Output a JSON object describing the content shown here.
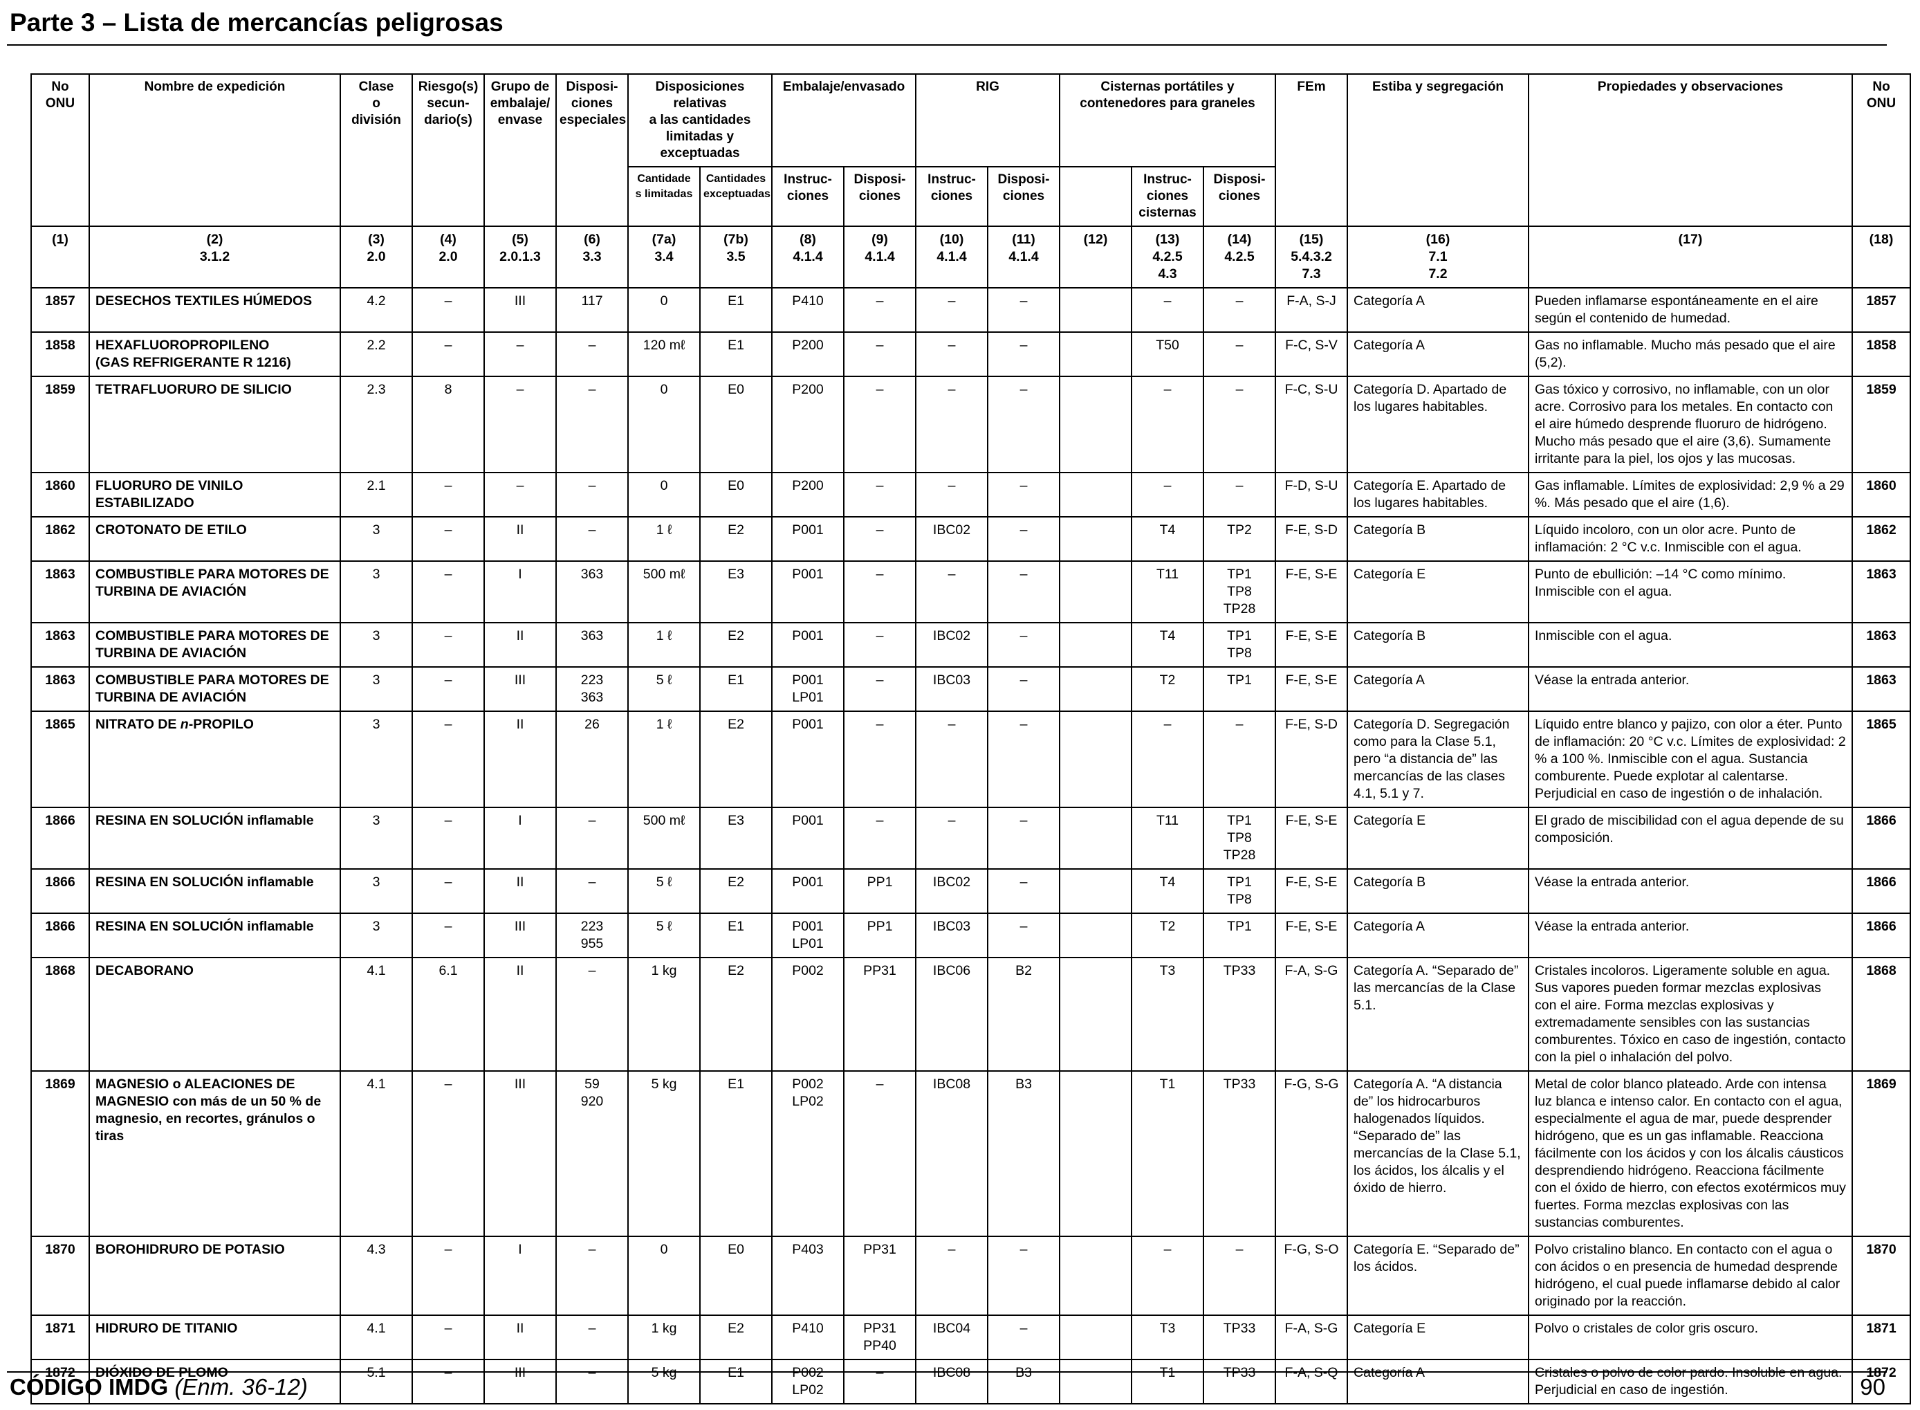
{
  "page_title": "Parte 3 – Lista de mercancías peligrosas",
  "header": {
    "un_no": "No\nONU",
    "name": "Nombre de expedición",
    "class": "Clase\no\ndivisión",
    "subsidiary": "Riesgo(s)\nsecun-\ndario(s)",
    "pg": "Grupo de\nembalaje/\nenvase",
    "sp": "Disposi-\nciones\nespeciales",
    "limited_excepted": "Disposiciones relativas\na las cantidades\nlimitadas y exceptuadas",
    "limited": "Cantidade\ns limitadas",
    "excepted": "Cantidades\nexceptuadas",
    "packing": "Embalaje/envasado",
    "packing_instr": "Instruc-\nciones",
    "packing_prov": "Disposi-\nciones",
    "ibc": "RIG",
    "ibc_instr": "Instruc-\nciones",
    "ibc_prov": "Disposi-\nciones",
    "tanks": "Cisternas portátiles y\ncontenedores para graneles",
    "tank_instr": "Instruc-\nciones\ncisternas",
    "tank_prov": "Disposi-\nciones",
    "ems": "FEm",
    "stowage": "Estiba y segregación",
    "properties": "Propiedades y observaciones",
    "un_no_end": "No\nONU"
  },
  "ref_row": [
    "(1)",
    "(2)\n3.1.2",
    "(3)\n2.0",
    "(4)\n2.0",
    "(5)\n2.0.1.3",
    "(6)\n3.3",
    "(7a)\n3.4",
    "(7b)\n3.5",
    "(8)\n4.1.4",
    "(9)\n4.1.4",
    "(10)\n4.1.4",
    "(11)\n4.1.4",
    "(12)",
    "(13)\n4.2.5\n4.3",
    "(14)\n4.2.5",
    "(15)\n5.4.3.2\n7.3",
    "(16)\n7.1\n7.2",
    "(17)",
    "(18)"
  ],
  "rows": [
    {
      "un": "1857",
      "name": "DESECHOS TEXTILES HÚMEDOS",
      "cls": "4.2",
      "sub": "–",
      "pg": "III",
      "sp": "117",
      "lq": "0",
      "eq": "E1",
      "pi": "P410",
      "pp": "–",
      "ibc": "–",
      "ibcp": "–",
      "c12": "",
      "tank": "–",
      "tp": "–",
      "ems": "F-A, S-J",
      "stow": "Categoría A",
      "prop": "Pueden inflamarse espontáneamente en el aire según el contenido de humedad.",
      "un2": "1857"
    },
    {
      "un": "1858",
      "name": "HEXAFLUOROPROPILENO\n(GAS REFRIGERANTE R 1216)",
      "cls": "2.2",
      "sub": "–",
      "pg": "–",
      "sp": "–",
      "lq": "120 mℓ",
      "eq": "E1",
      "pi": "P200",
      "pp": "–",
      "ibc": "–",
      "ibcp": "–",
      "c12": "",
      "tank": "T50",
      "tp": "–",
      "ems": "F-C, S-V",
      "stow": "Categoría A",
      "prop": "Gas no inflamable. Mucho más pesado que el aire (5,2).",
      "un2": "1858"
    },
    {
      "un": "1859",
      "name": "TETRAFLUORURO DE SILICIO",
      "cls": "2.3",
      "sub": "8",
      "pg": "–",
      "sp": "–",
      "lq": "0",
      "eq": "E0",
      "pi": "P200",
      "pp": "–",
      "ibc": "–",
      "ibcp": "–",
      "c12": "",
      "tank": "–",
      "tp": "–",
      "ems": "F-C, S-U",
      "stow": "Categoría D. Apartado de los lugares habitables.",
      "prop": "Gas tóxico y corrosivo, no inflamable, con un olor acre. Corrosivo para los metales. En contacto con el aire húmedo desprende fluoruro de hidrógeno. Mucho más pesado que el aire (3,6). Sumamente irritante para la piel, los ojos y las mucosas.",
      "un2": "1859"
    },
    {
      "un": "1860",
      "name": "FLUORURO DE VINILO ESTABILIZADO",
      "cls": "2.1",
      "sub": "–",
      "pg": "–",
      "sp": "–",
      "lq": "0",
      "eq": "E0",
      "pi": "P200",
      "pp": "–",
      "ibc": "–",
      "ibcp": "–",
      "c12": "",
      "tank": "–",
      "tp": "–",
      "ems": "F-D, S-U",
      "stow": "Categoría E. Apartado de los lugares habitables.",
      "prop": "Gas inflamable. Límites de explosividad: 2,9 % a 29 %. Más pesado que el aire (1,6).",
      "un2": "1860"
    },
    {
      "un": "1862",
      "name": "CROTONATO DE ETILO",
      "cls": "3",
      "sub": "–",
      "pg": "II",
      "sp": "–",
      "lq": "1 ℓ",
      "eq": "E2",
      "pi": "P001",
      "pp": "–",
      "ibc": "IBC02",
      "ibcp": "–",
      "c12": "",
      "tank": "T4",
      "tp": "TP2",
      "ems": "F-E, S-D",
      "stow": "Categoría B",
      "prop": "Líquido incoloro, con un olor acre. Punto de inflamación: 2 °C v.c. Inmiscible con el agua.",
      "un2": "1862"
    },
    {
      "un": "1863",
      "name": "COMBUSTIBLE PARA MOTORES DE TURBINA DE AVIACIÓN",
      "cls": "3",
      "sub": "–",
      "pg": "I",
      "sp": "363",
      "lq": "500 mℓ",
      "eq": "E3",
      "pi": "P001",
      "pp": "–",
      "ibc": "–",
      "ibcp": "–",
      "c12": "",
      "tank": "T11",
      "tp": "TP1\nTP8\nTP28",
      "ems": "F-E, S-E",
      "stow": "Categoría E",
      "prop": "Punto de ebullición: –14 °C como mínimo.\nInmiscible con el agua.",
      "un2": "1863"
    },
    {
      "un": "1863",
      "name": "COMBUSTIBLE PARA MOTORES DE TURBINA DE AVIACIÓN",
      "cls": "3",
      "sub": "–",
      "pg": "II",
      "sp": "363",
      "lq": "1 ℓ",
      "eq": "E2",
      "pi": "P001",
      "pp": "–",
      "ibc": "IBC02",
      "ibcp": "–",
      "c12": "",
      "tank": "T4",
      "tp": "TP1\nTP8",
      "ems": "F-E, S-E",
      "stow": "Categoría B",
      "prop": "Inmiscible con el agua.",
      "un2": "1863"
    },
    {
      "un": "1863",
      "name": "COMBUSTIBLE PARA MOTORES DE TURBINA DE AVIACIÓN",
      "cls": "3",
      "sub": "–",
      "pg": "III",
      "sp": "223\n363",
      "lq": "5 ℓ",
      "eq": "E1",
      "pi": "P001\nLP01",
      "pp": "–",
      "ibc": "IBC03",
      "ibcp": "–",
      "c12": "",
      "tank": "T2",
      "tp": "TP1",
      "ems": "F-E, S-E",
      "stow": "Categoría A",
      "prop": "Véase la entrada anterior.",
      "un2": "1863"
    },
    {
      "un": "1865",
      "name_pre": "NITRATO DE ",
      "name_it": "n",
      "name_post": "-PROPILO",
      "cls": "3",
      "sub": "–",
      "pg": "II",
      "sp": "26",
      "lq": "1 ℓ",
      "eq": "E2",
      "pi": "P001",
      "pp": "–",
      "ibc": "–",
      "ibcp": "–",
      "c12": "",
      "tank": "–",
      "tp": "–",
      "ems": "F-E, S-D",
      "stow": "Categoría D. Segregación como para la Clase 5.1, pero “a distancia de” las mercancías de las clases 4.1, 5.1 y 7.",
      "prop": "Líquido entre blanco y pajizo, con olor a éter. Punto de inflamación: 20 °C v.c. Límites de explosividad: 2 % a 100 %. Inmiscible con el agua. Sustancia comburente. Puede explotar al calentarse. Perjudicial en caso de ingestión o de inhalación.",
      "un2": "1865"
    },
    {
      "un": "1866",
      "name": "RESINA EN SOLUCIÓN inflamable",
      "cls": "3",
      "sub": "–",
      "pg": "I",
      "sp": "–",
      "lq": "500 mℓ",
      "eq": "E3",
      "pi": "P001",
      "pp": "–",
      "ibc": "–",
      "ibcp": "–",
      "c12": "",
      "tank": "T11",
      "tp": "TP1\nTP8\nTP28",
      "ems": "F-E, S-E",
      "stow": "Categoría E",
      "prop": "El grado de miscibilidad con el agua depende de su composición.",
      "un2": "1866"
    },
    {
      "un": "1866",
      "name": "RESINA EN SOLUCIÓN inflamable",
      "cls": "3",
      "sub": "–",
      "pg": "II",
      "sp": "–",
      "lq": "5 ℓ",
      "eq": "E2",
      "pi": "P001",
      "pp": "PP1",
      "ibc": "IBC02",
      "ibcp": "–",
      "c12": "",
      "tank": "T4",
      "tp": "TP1\nTP8",
      "ems": "F-E, S-E",
      "stow": "Categoría B",
      "prop": "Véase la entrada anterior.",
      "un2": "1866"
    },
    {
      "un": "1866",
      "name": "RESINA EN SOLUCIÓN inflamable",
      "cls": "3",
      "sub": "–",
      "pg": "III",
      "sp": "223\n955",
      "lq": "5 ℓ",
      "eq": "E1",
      "pi": "P001\nLP01",
      "pp": "PP1",
      "ibc": "IBC03",
      "ibcp": "–",
      "c12": "",
      "tank": "T2",
      "tp": "TP1",
      "ems": "F-E, S-E",
      "stow": "Categoría A",
      "prop": "Véase la entrada anterior.",
      "un2": "1866"
    },
    {
      "un": "1868",
      "name": "DECABORANO",
      "cls": "4.1",
      "sub": "6.1",
      "pg": "II",
      "sp": "–",
      "lq": "1 kg",
      "eq": "E2",
      "pi": "P002",
      "pp": "PP31",
      "ibc": "IBC06",
      "ibcp": "B2",
      "c12": "",
      "tank": "T3",
      "tp": "TP33",
      "ems": "F-A, S-G",
      "stow": "Categoría A. “Separado de” las mercancías de la Clase 5.1.",
      "prop": "Cristales incoloros. Ligeramente soluble en agua. Sus vapores pueden formar mezclas explosivas con el aire. Forma mezclas explosivas y extremadamente sensibles con las sustancias comburentes. Tóxico en caso de ingestión, contacto con la piel o inhalación del polvo.",
      "un2": "1868"
    },
    {
      "un": "1869",
      "name": "MAGNESIO o ALEACIONES DE MAGNESIO con más de un 50 % de magnesio, en recortes, gránulos o tiras",
      "cls": "4.1",
      "sub": "–",
      "pg": "III",
      "sp": "59\n920",
      "lq": "5 kg",
      "eq": "E1",
      "pi": "P002\nLP02",
      "pp": "–",
      "ibc": "IBC08",
      "ibcp": "B3",
      "c12": "",
      "tank": "T1",
      "tp": "TP33",
      "ems": "F-G, S-G",
      "stow": "Categoría A. “A distancia de” los hidrocarburos halogenados líquidos. “Separado de” las mercancías de la Clase 5.1, los ácidos, los álcalis y el óxido de hierro.",
      "prop": "Metal de color blanco plateado. Arde con intensa luz blanca e intenso calor. En contacto con el agua, especialmente el agua de mar, puede desprender hidrógeno, que es un gas inflamable. Reacciona fácilmente con los ácidos y con los álcalis cáusticos desprendiendo hidrógeno. Reacciona fácilmente con el óxido de hierro, con efectos exotérmicos muy fuertes. Forma mezclas explosivas con las sustancias comburentes.",
      "un2": "1869"
    },
    {
      "un": "1870",
      "name": "BOROHIDRURO DE POTASIO",
      "cls": "4.3",
      "sub": "–",
      "pg": "I",
      "sp": "–",
      "lq": "0",
      "eq": "E0",
      "pi": "P403",
      "pp": "PP31",
      "ibc": "–",
      "ibcp": "–",
      "c12": "",
      "tank": "–",
      "tp": "–",
      "ems": "F-G, S-O",
      "stow": "Categoría E. “Separado de” los ácidos.",
      "prop": "Polvo cristalino blanco. En contacto con el agua o con ácidos o en presencia de humedad desprende hidrógeno, el cual puede inflamarse debido al calor originado por la reacción.",
      "un2": "1870"
    },
    {
      "un": "1871",
      "name": "HIDRURO DE TITANIO",
      "cls": "4.1",
      "sub": "–",
      "pg": "II",
      "sp": "–",
      "lq": "1 kg",
      "eq": "E2",
      "pi": "P410",
      "pp": "PP31\nPP40",
      "ibc": "IBC04",
      "ibcp": "–",
      "c12": "",
      "tank": "T3",
      "tp": "TP33",
      "ems": "F-A, S-G",
      "stow": "Categoría E",
      "prop": "Polvo o cristales de color gris oscuro.",
      "un2": "1871"
    },
    {
      "un": "1872",
      "name": "DIÓXIDO DE PLOMO",
      "cls": "5.1",
      "sub": "–",
      "pg": "III",
      "sp": "–",
      "lq": "5 kg",
      "eq": "E1",
      "pi": "P002\nLP02",
      "pp": "–",
      "ibc": "IBC08",
      "ibcp": "B3",
      "c12": "",
      "tank": "T1",
      "tp": "TP33",
      "ems": "F-A, S-Q",
      "stow": "Categoría A",
      "prop": "Cristales o polvo de color pardo. Insoluble en agua. Perjudicial en caso de ingestión.",
      "un2": "1872"
    }
  ],
  "footer": {
    "code": "CÓDIGO IMDG",
    "amendment": "(Enm. 36-12)",
    "page_number": "90"
  }
}
